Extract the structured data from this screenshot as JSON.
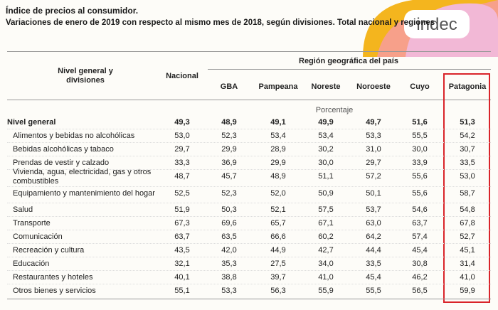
{
  "header": {
    "title": "Índice de precios al consumidor.",
    "subtitle": "Variaciones de enero de 2019 con respecto al mismo mes de 2018, según divisiones. Total nacional y regiones",
    "logo": "indec"
  },
  "table": {
    "row_header": "Nivel general y divisiones",
    "region_header": "Región geográfica del país",
    "national_column": "Nacional",
    "region_columns": [
      "GBA",
      "Pampeana",
      "Noreste",
      "Noroeste",
      "Cuyo",
      "Patagonia"
    ],
    "unit": "Porcentaje",
    "rows": [
      [
        "Nivel general",
        "49,3",
        "48,9",
        "49,1",
        "49,9",
        "49,7",
        "51,6",
        "51,3"
      ],
      [
        "Alimentos y bebidas no alcohólicas",
        "53,0",
        "52,3",
        "53,4",
        "53,4",
        "53,3",
        "55,5",
        "54,2"
      ],
      [
        "Bebidas alcohólicas y tabaco",
        "29,7",
        "29,9",
        "28,9",
        "30,2",
        "31,0",
        "30,0",
        "30,7"
      ],
      [
        "Prendas de vestir y calzado",
        "33,3",
        "36,9",
        "29,9",
        "30,0",
        "29,7",
        "33,9",
        "33,5"
      ],
      [
        "Vivienda, agua, electricidad, gas y otros combustibles",
        "48,7",
        "45,7",
        "48,9",
        "51,1",
        "57,2",
        "55,6",
        "53,0"
      ],
      [
        "Equipamiento y mantenimiento del hogar",
        "52,5",
        "52,3",
        "52,0",
        "50,9",
        "50,1",
        "55,6",
        "58,7"
      ],
      [
        "Salud",
        "51,9",
        "50,3",
        "52,1",
        "57,5",
        "53,7",
        "54,6",
        "54,8"
      ],
      [
        "Transporte",
        "67,3",
        "69,6",
        "65,7",
        "67,1",
        "63,0",
        "63,7",
        "67,8"
      ],
      [
        "Comunicación",
        "63,7",
        "63,5",
        "66,6",
        "60,2",
        "64,2",
        "57,4",
        "52,7"
      ],
      [
        "Recreación y cultura",
        "43,5",
        "42,0",
        "44,9",
        "42,7",
        "44,4",
        "45,4",
        "45,1"
      ],
      [
        "Educación",
        "32,1",
        "35,3",
        "27,5",
        "34,0",
        "33,5",
        "30,8",
        "31,4"
      ],
      [
        "Restaurantes y hoteles",
        "40,1",
        "38,8",
        "39,7",
        "41,0",
        "45,4",
        "46,2",
        "41,0"
      ],
      [
        "Otros bienes y servicios",
        "55,1",
        "53,3",
        "56,3",
        "55,9",
        "55,5",
        "56,5",
        "59,9"
      ]
    ]
  }
}
